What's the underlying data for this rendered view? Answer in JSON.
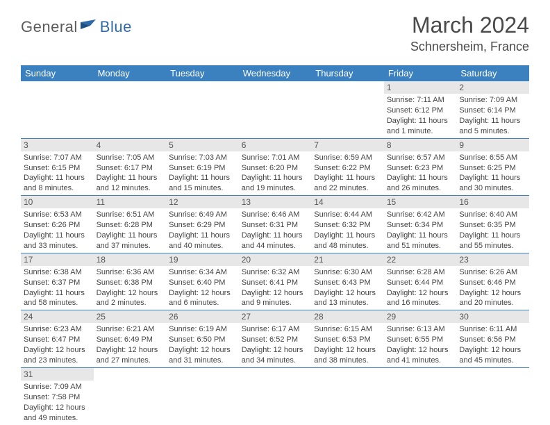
{
  "logo": {
    "general": "General",
    "blue": "Blue"
  },
  "title": "March 2024",
  "location": "Schnersheim, France",
  "colors": {
    "header_bg": "#3b80bf",
    "header_text": "#ffffff",
    "daynum_bg": "#e7e7e7",
    "row_border": "#3b80bf",
    "text": "#444444",
    "logo_blue": "#2f6aa8",
    "logo_gray": "#5b5b5b"
  },
  "dow": [
    "Sunday",
    "Monday",
    "Tuesday",
    "Wednesday",
    "Thursday",
    "Friday",
    "Saturday"
  ],
  "weeks": [
    [
      {
        "empty": true
      },
      {
        "empty": true
      },
      {
        "empty": true
      },
      {
        "empty": true
      },
      {
        "empty": true
      },
      {
        "n": "1",
        "sunrise": "Sunrise: 7:11 AM",
        "sunset": "Sunset: 6:12 PM",
        "day1": "Daylight: 11 hours",
        "day2": "and 1 minute."
      },
      {
        "n": "2",
        "sunrise": "Sunrise: 7:09 AM",
        "sunset": "Sunset: 6:14 PM",
        "day1": "Daylight: 11 hours",
        "day2": "and 5 minutes."
      }
    ],
    [
      {
        "n": "3",
        "sunrise": "Sunrise: 7:07 AM",
        "sunset": "Sunset: 6:15 PM",
        "day1": "Daylight: 11 hours",
        "day2": "and 8 minutes."
      },
      {
        "n": "4",
        "sunrise": "Sunrise: 7:05 AM",
        "sunset": "Sunset: 6:17 PM",
        "day1": "Daylight: 11 hours",
        "day2": "and 12 minutes."
      },
      {
        "n": "5",
        "sunrise": "Sunrise: 7:03 AM",
        "sunset": "Sunset: 6:19 PM",
        "day1": "Daylight: 11 hours",
        "day2": "and 15 minutes."
      },
      {
        "n": "6",
        "sunrise": "Sunrise: 7:01 AM",
        "sunset": "Sunset: 6:20 PM",
        "day1": "Daylight: 11 hours",
        "day2": "and 19 minutes."
      },
      {
        "n": "7",
        "sunrise": "Sunrise: 6:59 AM",
        "sunset": "Sunset: 6:22 PM",
        "day1": "Daylight: 11 hours",
        "day2": "and 22 minutes."
      },
      {
        "n": "8",
        "sunrise": "Sunrise: 6:57 AM",
        "sunset": "Sunset: 6:23 PM",
        "day1": "Daylight: 11 hours",
        "day2": "and 26 minutes."
      },
      {
        "n": "9",
        "sunrise": "Sunrise: 6:55 AM",
        "sunset": "Sunset: 6:25 PM",
        "day1": "Daylight: 11 hours",
        "day2": "and 30 minutes."
      }
    ],
    [
      {
        "n": "10",
        "sunrise": "Sunrise: 6:53 AM",
        "sunset": "Sunset: 6:26 PM",
        "day1": "Daylight: 11 hours",
        "day2": "and 33 minutes."
      },
      {
        "n": "11",
        "sunrise": "Sunrise: 6:51 AM",
        "sunset": "Sunset: 6:28 PM",
        "day1": "Daylight: 11 hours",
        "day2": "and 37 minutes."
      },
      {
        "n": "12",
        "sunrise": "Sunrise: 6:49 AM",
        "sunset": "Sunset: 6:29 PM",
        "day1": "Daylight: 11 hours",
        "day2": "and 40 minutes."
      },
      {
        "n": "13",
        "sunrise": "Sunrise: 6:46 AM",
        "sunset": "Sunset: 6:31 PM",
        "day1": "Daylight: 11 hours",
        "day2": "and 44 minutes."
      },
      {
        "n": "14",
        "sunrise": "Sunrise: 6:44 AM",
        "sunset": "Sunset: 6:32 PM",
        "day1": "Daylight: 11 hours",
        "day2": "and 48 minutes."
      },
      {
        "n": "15",
        "sunrise": "Sunrise: 6:42 AM",
        "sunset": "Sunset: 6:34 PM",
        "day1": "Daylight: 11 hours",
        "day2": "and 51 minutes."
      },
      {
        "n": "16",
        "sunrise": "Sunrise: 6:40 AM",
        "sunset": "Sunset: 6:35 PM",
        "day1": "Daylight: 11 hours",
        "day2": "and 55 minutes."
      }
    ],
    [
      {
        "n": "17",
        "sunrise": "Sunrise: 6:38 AM",
        "sunset": "Sunset: 6:37 PM",
        "day1": "Daylight: 11 hours",
        "day2": "and 58 minutes."
      },
      {
        "n": "18",
        "sunrise": "Sunrise: 6:36 AM",
        "sunset": "Sunset: 6:38 PM",
        "day1": "Daylight: 12 hours",
        "day2": "and 2 minutes."
      },
      {
        "n": "19",
        "sunrise": "Sunrise: 6:34 AM",
        "sunset": "Sunset: 6:40 PM",
        "day1": "Daylight: 12 hours",
        "day2": "and 6 minutes."
      },
      {
        "n": "20",
        "sunrise": "Sunrise: 6:32 AM",
        "sunset": "Sunset: 6:41 PM",
        "day1": "Daylight: 12 hours",
        "day2": "and 9 minutes."
      },
      {
        "n": "21",
        "sunrise": "Sunrise: 6:30 AM",
        "sunset": "Sunset: 6:43 PM",
        "day1": "Daylight: 12 hours",
        "day2": "and 13 minutes."
      },
      {
        "n": "22",
        "sunrise": "Sunrise: 6:28 AM",
        "sunset": "Sunset: 6:44 PM",
        "day1": "Daylight: 12 hours",
        "day2": "and 16 minutes."
      },
      {
        "n": "23",
        "sunrise": "Sunrise: 6:26 AM",
        "sunset": "Sunset: 6:46 PM",
        "day1": "Daylight: 12 hours",
        "day2": "and 20 minutes."
      }
    ],
    [
      {
        "n": "24",
        "sunrise": "Sunrise: 6:23 AM",
        "sunset": "Sunset: 6:47 PM",
        "day1": "Daylight: 12 hours",
        "day2": "and 23 minutes."
      },
      {
        "n": "25",
        "sunrise": "Sunrise: 6:21 AM",
        "sunset": "Sunset: 6:49 PM",
        "day1": "Daylight: 12 hours",
        "day2": "and 27 minutes."
      },
      {
        "n": "26",
        "sunrise": "Sunrise: 6:19 AM",
        "sunset": "Sunset: 6:50 PM",
        "day1": "Daylight: 12 hours",
        "day2": "and 31 minutes."
      },
      {
        "n": "27",
        "sunrise": "Sunrise: 6:17 AM",
        "sunset": "Sunset: 6:52 PM",
        "day1": "Daylight: 12 hours",
        "day2": "and 34 minutes."
      },
      {
        "n": "28",
        "sunrise": "Sunrise: 6:15 AM",
        "sunset": "Sunset: 6:53 PM",
        "day1": "Daylight: 12 hours",
        "day2": "and 38 minutes."
      },
      {
        "n": "29",
        "sunrise": "Sunrise: 6:13 AM",
        "sunset": "Sunset: 6:55 PM",
        "day1": "Daylight: 12 hours",
        "day2": "and 41 minutes."
      },
      {
        "n": "30",
        "sunrise": "Sunrise: 6:11 AM",
        "sunset": "Sunset: 6:56 PM",
        "day1": "Daylight: 12 hours",
        "day2": "and 45 minutes."
      }
    ],
    [
      {
        "n": "31",
        "sunrise": "Sunrise: 7:09 AM",
        "sunset": "Sunset: 7:58 PM",
        "day1": "Daylight: 12 hours",
        "day2": "and 49 minutes."
      },
      {
        "empty": true
      },
      {
        "empty": true
      },
      {
        "empty": true
      },
      {
        "empty": true
      },
      {
        "empty": true
      },
      {
        "empty": true
      }
    ]
  ]
}
